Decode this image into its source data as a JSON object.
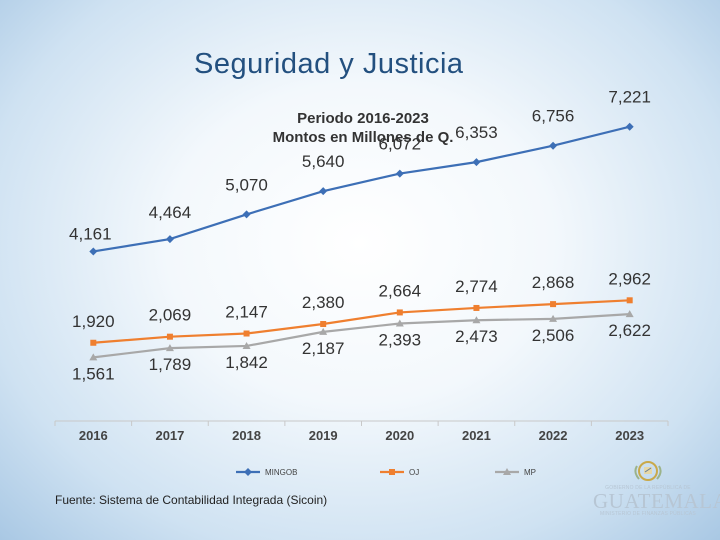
{
  "slide": {
    "title": "Seguridad y Justicia",
    "source": "Fuente: Sistema de Contabilidad Integrada (Sicoin)"
  },
  "logo": {
    "top_line": "GOBIERNO DE LA REPÚBLICA DE",
    "name": "GUATEMALA",
    "bottom_line": "MINISTERIO DE FINANZAS PÚBLICAS"
  },
  "chart_data": {
    "type": "line",
    "title": "Periodo 2016-2023",
    "subtitle": "Montos en Millones de Q.",
    "categories": [
      "2016",
      "2017",
      "2018",
      "2019",
      "2020",
      "2021",
      "2022",
      "2023"
    ],
    "series": [
      {
        "name": "MINGOB",
        "color": "#3d6fb6",
        "marker": "diamond",
        "values": [
          4161,
          4464,
          5070,
          5640,
          6072,
          6353,
          6756,
          7221
        ],
        "labels": [
          "4,161",
          "4,464",
          "5,070",
          "5,640",
          "6,072",
          "6,353",
          "6,756",
          "7,221"
        ]
      },
      {
        "name": "OJ",
        "color": "#ef7f2f",
        "marker": "square",
        "values": [
          1920,
          2069,
          2147,
          2380,
          2664,
          2774,
          2868,
          2962
        ],
        "labels": [
          "1,920",
          "2,069",
          "2,147",
          "2,380",
          "2,664",
          "2,774",
          "2,868",
          "2,962"
        ]
      },
      {
        "name": "MP",
        "color": "#a8a8a8",
        "marker": "triangle",
        "values": [
          1561,
          1789,
          1842,
          2187,
          2393,
          2473,
          2506,
          2622
        ],
        "labels": [
          "1,561",
          "1,789",
          "1,842",
          "2,187",
          "2,393",
          "2,473",
          "2,506",
          "2,622"
        ]
      }
    ],
    "ylim": [
      0,
      8000
    ],
    "grid": false,
    "legend": "bottom"
  }
}
